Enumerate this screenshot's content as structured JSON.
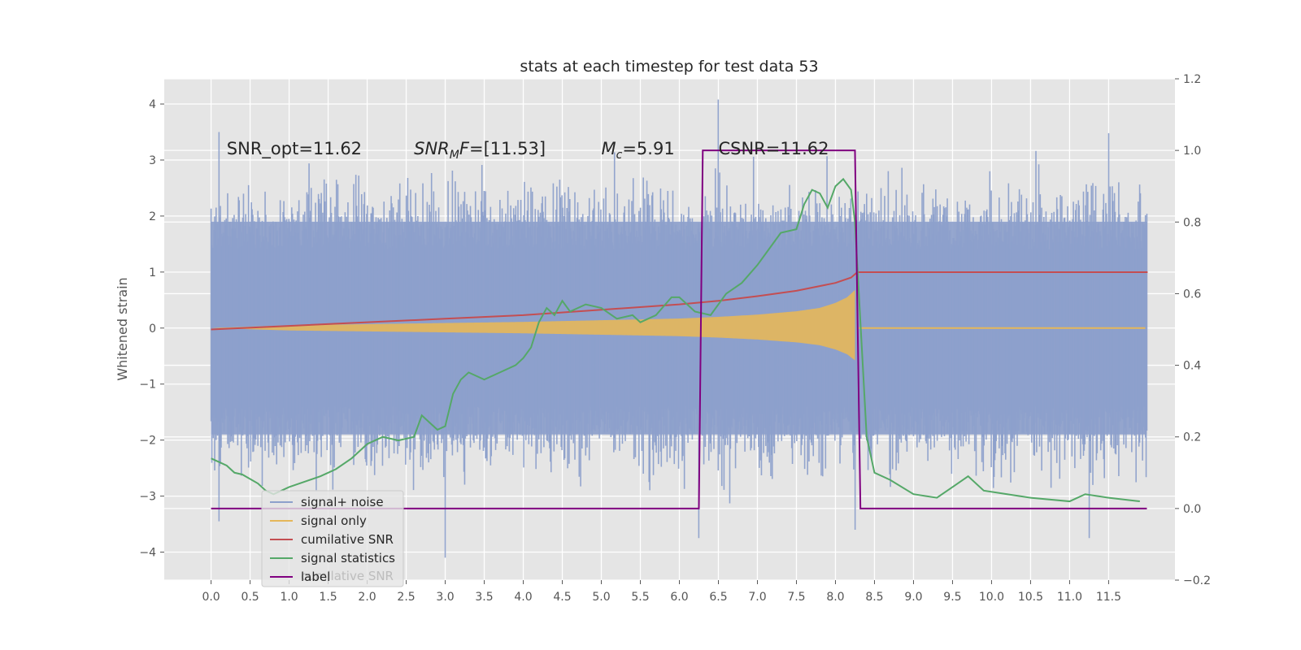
{
  "chart_data": {
    "type": "line",
    "title": "stats at each timestep for test data 53",
    "ylabel": "Whitened strain",
    "xlabel": "",
    "xlim": [
      -0.6,
      12.35
    ],
    "ylim": [
      -4.5,
      4.45
    ],
    "y2lim": [
      -0.2,
      1.2
    ],
    "x_ticks": [
      0.0,
      0.5,
      1.0,
      1.5,
      2.0,
      2.5,
      3.0,
      3.5,
      4.0,
      4.5,
      5.0,
      5.5,
      6.0,
      6.5,
      7.0,
      7.5,
      8.0,
      8.5,
      9.0,
      9.5,
      10.0,
      10.5,
      11.0,
      11.5
    ],
    "x_tick_labels": [
      "0.0",
      "0.5",
      "1.0",
      "1.5",
      "2.0",
      "2.5",
      "3.0",
      "3.5",
      "4.0",
      "4.5",
      "5.0",
      "5.5",
      "6.0",
      "6.5",
      "7.0",
      "7.5",
      "8.0",
      "8.5",
      "9.0",
      "9.5",
      "10.0",
      "10.5",
      "11.0",
      "11.5"
    ],
    "y_ticks": [
      -4,
      -3,
      -2,
      -1,
      0,
      1,
      2,
      3,
      4
    ],
    "y_tick_labels": [
      "−4",
      "−3",
      "−2",
      "−1",
      "0",
      "1",
      "2",
      "3",
      "4"
    ],
    "y2_ticks": [
      -0.2,
      0.0,
      0.2,
      0.4,
      0.6,
      0.8,
      1.0,
      1.2
    ],
    "y2_tick_labels": [
      "−0.2",
      "0.0",
      "0.2",
      "0.4",
      "0.6",
      "0.8",
      "1.0",
      "1.2"
    ],
    "grid": true,
    "legend_position": "lower-left",
    "annotations": [
      {
        "text": "SNR_opt=11.62",
        "x": 0.2,
        "y": 3.22
      },
      {
        "text": "SNR_MF=[11.53]",
        "x": 2.6,
        "y": 3.22,
        "math": {
          "base": "SNR",
          "sub": "M",
          "rest": "F=[11.53]"
        }
      },
      {
        "text": "M_c=5.91",
        "x": 5.0,
        "y": 3.22,
        "math": {
          "base": "M",
          "sub": "c",
          "rest": "=5.91"
        }
      },
      {
        "text": "CSNR=11.62",
        "x": 6.5,
        "y": 3.22
      }
    ],
    "series": [
      {
        "name": "signal+ noise",
        "axis": "left",
        "color": "#8da0cb",
        "x_range": [
          0.0,
          11.99
        ],
        "typical_abs_value": 2.0,
        "peak_values": [
          [
            0.1,
            3.5
          ],
          [
            6.5,
            4.08
          ],
          [
            3.0,
            -4.1
          ],
          [
            0.1,
            -3.45
          ],
          [
            6.25,
            -3.75
          ],
          [
            8.25,
            -3.6
          ],
          [
            11.25,
            -3.75
          ],
          [
            11.5,
            3.48
          ]
        ]
      },
      {
        "name": "signal only",
        "axis": "left",
        "color": "#e5b75a",
        "x": [
          0.0,
          1.0,
          2.0,
          3.0,
          4.0,
          5.0,
          6.0,
          6.5,
          7.0,
          7.5,
          7.8,
          8.0,
          8.15,
          8.25,
          8.3,
          12.0
        ],
        "y_amplitude": [
          0.0,
          0.05,
          0.07,
          0.09,
          0.11,
          0.14,
          0.17,
          0.2,
          0.24,
          0.3,
          0.36,
          0.45,
          0.55,
          0.68,
          0.0,
          0.0
        ]
      },
      {
        "name": "cumilative SNR",
        "axis": "right",
        "color": "#c44e52",
        "x": [
          0.0,
          1.0,
          2.0,
          3.0,
          4.0,
          5.0,
          6.0,
          6.5,
          7.0,
          7.5,
          8.0,
          8.2,
          8.28,
          12.0
        ],
        "y": [
          0.5,
          0.51,
          0.52,
          0.53,
          0.54,
          0.555,
          0.57,
          0.58,
          0.593,
          0.608,
          0.63,
          0.645,
          0.66,
          0.66
        ]
      },
      {
        "name": "signal statistics",
        "axis": "right",
        "color": "#55a868",
        "x": [
          0.0,
          0.1,
          0.2,
          0.3,
          0.4,
          0.6,
          0.7,
          0.8,
          1.0,
          1.2,
          1.4,
          1.5,
          1.6,
          1.8,
          1.9,
          2.0,
          2.2,
          2.4,
          2.6,
          2.7,
          2.8,
          2.9,
          3.0,
          3.1,
          3.2,
          3.3,
          3.5,
          3.7,
          3.9,
          4.0,
          4.1,
          4.2,
          4.3,
          4.4,
          4.5,
          4.6,
          4.8,
          5.0,
          5.2,
          5.4,
          5.5,
          5.7,
          5.9,
          6.0,
          6.2,
          6.4,
          6.6,
          6.8,
          7.0,
          7.2,
          7.3,
          7.5,
          7.6,
          7.7,
          7.8,
          7.9,
          8.0,
          8.1,
          8.2,
          8.25,
          8.3,
          8.4,
          8.5,
          8.7,
          9.0,
          9.3,
          9.5,
          9.7,
          9.9,
          10.2,
          10.5,
          11.0,
          11.2,
          11.5,
          11.9
        ],
        "y": [
          0.14,
          0.13,
          0.12,
          0.1,
          0.095,
          0.07,
          0.05,
          0.04,
          0.06,
          0.075,
          0.09,
          0.1,
          0.11,
          0.14,
          0.16,
          0.18,
          0.2,
          0.19,
          0.2,
          0.26,
          0.24,
          0.22,
          0.23,
          0.32,
          0.36,
          0.38,
          0.36,
          0.38,
          0.4,
          0.42,
          0.45,
          0.52,
          0.56,
          0.54,
          0.58,
          0.55,
          0.57,
          0.56,
          0.53,
          0.54,
          0.52,
          0.54,
          0.59,
          0.59,
          0.55,
          0.54,
          0.6,
          0.63,
          0.68,
          0.74,
          0.77,
          0.78,
          0.85,
          0.89,
          0.88,
          0.84,
          0.9,
          0.92,
          0.89,
          0.8,
          0.6,
          0.2,
          0.1,
          0.08,
          0.04,
          0.03,
          0.06,
          0.09,
          0.05,
          0.04,
          0.03,
          0.02,
          0.04,
          0.03,
          0.02
        ]
      },
      {
        "name": "label",
        "axis": "right",
        "color": "#800080",
        "x": [
          0.0,
          6.25,
          6.3,
          8.25,
          8.32,
          11.99
        ],
        "y": [
          0.0,
          0.0,
          1.0,
          1.0,
          0.0,
          0.0
        ]
      }
    ],
    "legend_overlap_text": "cumilative SNR"
  }
}
